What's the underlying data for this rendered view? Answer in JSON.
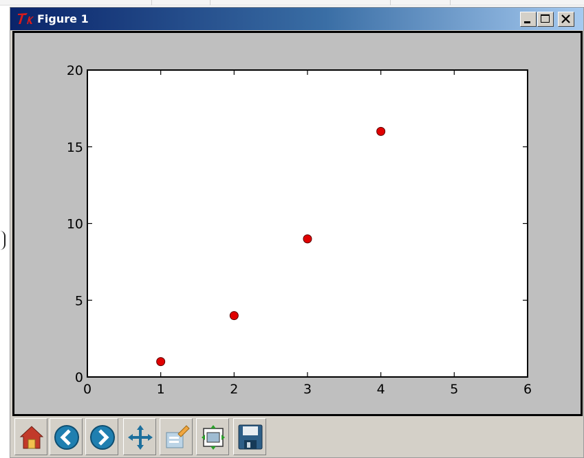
{
  "window": {
    "title": "Figure 1",
    "controls": {
      "minimize": "_",
      "maximize": "□",
      "close": "×"
    }
  },
  "toolbar": {
    "buttons": [
      {
        "icon": "home-icon"
      },
      {
        "icon": "back-arrow-icon"
      },
      {
        "icon": "forward-arrow-icon"
      },
      {
        "icon": "pan-move-icon"
      },
      {
        "icon": "zoom-rectangle-icon"
      },
      {
        "icon": "configure-subplots-icon"
      },
      {
        "icon": "save-floppy-icon"
      }
    ]
  },
  "colors": {
    "title_gradient_start": "#0a246a",
    "title_gradient_end": "#a6caf0",
    "figure_background": "#bfbfbf",
    "marker": "#e00000"
  },
  "chart_data": {
    "type": "scatter",
    "x": [
      1,
      2,
      3,
      4
    ],
    "y": [
      1,
      4,
      9,
      16
    ],
    "xlim": [
      0,
      6
    ],
    "ylim": [
      0,
      20
    ],
    "xticks": [
      "0",
      "1",
      "2",
      "3",
      "4",
      "5",
      "6"
    ],
    "yticks": [
      "0",
      "5",
      "10",
      "15",
      "20"
    ],
    "marker_color": "#e00000",
    "grid": false
  }
}
